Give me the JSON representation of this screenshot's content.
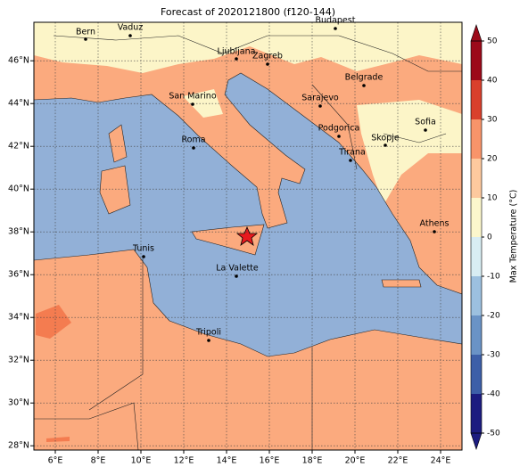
{
  "chart_data": {
    "type": "map",
    "title": "Forecast of 2020121800 (f120-144)",
    "xlim": [
      5,
      25
    ],
    "ylim": [
      27.8,
      47.8
    ],
    "xticks": [
      {
        "value": 6,
        "label": "6°E"
      },
      {
        "value": 8,
        "label": "8°E"
      },
      {
        "value": 10,
        "label": "10°E"
      },
      {
        "value": 12,
        "label": "12°E"
      },
      {
        "value": 14,
        "label": "14°E"
      },
      {
        "value": 16,
        "label": "16°E"
      },
      {
        "value": 18,
        "label": "18°E"
      },
      {
        "value": 20,
        "label": "20°E"
      },
      {
        "value": 22,
        "label": "22°E"
      },
      {
        "value": 24,
        "label": "24°E"
      }
    ],
    "yticks": [
      {
        "value": 28,
        "label": "28°N"
      },
      {
        "value": 30,
        "label": "30°N"
      },
      {
        "value": 32,
        "label": "32°N"
      },
      {
        "value": 34,
        "label": "34°N"
      },
      {
        "value": 36,
        "label": "36°N"
      },
      {
        "value": 38,
        "label": "38°N"
      },
      {
        "value": 40,
        "label": "40°N"
      },
      {
        "value": 42,
        "label": "42°N"
      },
      {
        "value": 44,
        "label": "44°N"
      },
      {
        "value": 46,
        "label": "46°N"
      }
    ],
    "grid": true,
    "cities": [
      "Bern",
      "Vaduz",
      "Budapest",
      "Ljubljana",
      "Zagreb",
      "Belgrade",
      "San Marino",
      "Sarajevo",
      "Sofia",
      "Podgorica",
      "Skopje",
      "Roma",
      "Tirana",
      "Athens",
      "Tunis",
      "La Valette",
      "Tripoli"
    ],
    "colorbar": {
      "label": "Max Temperature (°C)",
      "lim": [
        -50,
        50
      ],
      "ticks": [
        -50,
        -40,
        -30,
        -20,
        -10,
        0,
        10,
        20,
        30,
        40,
        50
      ],
      "colors": [
        "#1c1c80",
        "#3d5fa8",
        "#6a93c6",
        "#9cc0df",
        "#d8edf3",
        "#fcf7cc",
        "#fdc99e",
        "#f8946a",
        "#d9402c",
        "#9c0a1a"
      ]
    }
  }
}
